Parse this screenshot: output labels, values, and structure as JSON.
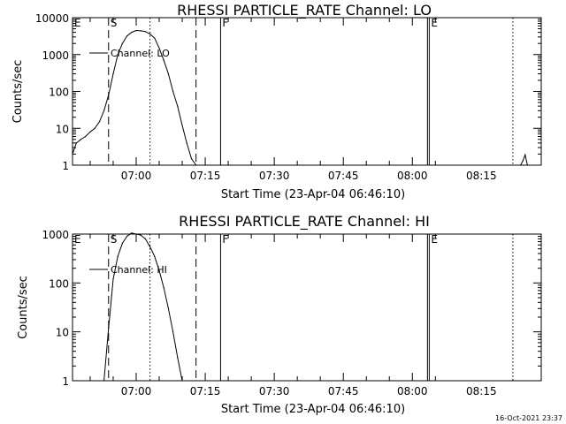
{
  "chart_data": [
    {
      "type": "line",
      "title": "RHESSI PARTICLE_RATE Channel: LO",
      "xlabel": "Start Time (23-Apr-04 06:46:10)",
      "ylabel": "Counts/sec",
      "yscale": "log",
      "ylim": [
        1,
        10000
      ],
      "xlim": [
        "06:46:10",
        "08:28:00"
      ],
      "x_ticks": [
        "07:00",
        "07:15",
        "07:30",
        "07:45",
        "08:00",
        "08:15"
      ],
      "y_ticks": [
        "1",
        "10",
        "100",
        "1000",
        "10000"
      ],
      "legend": {
        "placement": "top-left",
        "label": "Channel: LO"
      },
      "markers": [
        {
          "label": "E",
          "time": "06:46:10",
          "style": "none"
        },
        {
          "label": "S",
          "time": "06:54:00",
          "style": "dashed"
        },
        {
          "label": "",
          "time": "07:03:00",
          "style": "dotted"
        },
        {
          "label": "",
          "time": "07:13:00",
          "style": "dashed"
        },
        {
          "label": "F",
          "time": "07:18:20",
          "style": "solid"
        },
        {
          "label": "E",
          "time": "08:03:40",
          "style": "solid"
        },
        {
          "label": "",
          "time": "08:21:50",
          "style": "dotted"
        }
      ],
      "series": [
        {
          "name": "Channel: LO",
          "x": [
            "06:46:10",
            "06:47:00",
            "06:48:00",
            "06:49:00",
            "06:50:00",
            "06:51:00",
            "06:52:00",
            "06:53:00",
            "06:54:00",
            "06:55:00",
            "06:56:00",
            "06:57:00",
            "06:58:00",
            "06:59:00",
            "07:00:00",
            "07:01:00",
            "07:02:00",
            "07:03:00",
            "07:04:00",
            "07:05:00",
            "07:06:00",
            "07:07:00",
            "07:08:00",
            "07:09:00",
            "07:10:00",
            "07:11:00",
            "07:12:00",
            "07:13:00"
          ],
          "values": [
            2,
            4,
            5,
            6,
            8,
            10,
            15,
            30,
            80,
            300,
            1000,
            2000,
            3200,
            4000,
            4500,
            4400,
            4200,
            3600,
            2800,
            1500,
            700,
            300,
            100,
            40,
            12,
            4,
            1.5,
            1
          ]
        },
        {
          "name": "Channel: LO",
          "x": [
            "08:23:30",
            "08:24:00",
            "08:24:30",
            "08:25:00"
          ],
          "values": [
            1,
            1.3,
            1.9,
            1
          ]
        }
      ]
    },
    {
      "type": "line",
      "title": "RHESSI PARTICLE_RATE Channel: HI",
      "xlabel": "Start Time (23-Apr-04 06:46:10)",
      "ylabel": "Counts/sec",
      "yscale": "log",
      "ylim": [
        1,
        1000
      ],
      "xlim": [
        "06:46:10",
        "08:28:00"
      ],
      "x_ticks": [
        "07:00",
        "07:15",
        "07:30",
        "07:45",
        "08:00",
        "08:15"
      ],
      "y_ticks": [
        "1",
        "10",
        "100",
        "1000"
      ],
      "legend": {
        "placement": "top-left",
        "label": "Channel: HI"
      },
      "markers": [
        {
          "label": "E",
          "time": "06:46:10",
          "style": "none"
        },
        {
          "label": "S",
          "time": "06:54:00",
          "style": "dashed"
        },
        {
          "label": "",
          "time": "07:03:00",
          "style": "dotted"
        },
        {
          "label": "",
          "time": "07:13:00",
          "style": "dashed"
        },
        {
          "label": "F",
          "time": "07:18:20",
          "style": "solid"
        },
        {
          "label": "E",
          "time": "08:03:40",
          "style": "solid"
        },
        {
          "label": "",
          "time": "08:21:50",
          "style": "dotted"
        }
      ],
      "series": [
        {
          "name": "Channel: HI",
          "x": [
            "06:53:00",
            "06:54:00",
            "06:55:00",
            "06:56:00",
            "06:57:00",
            "06:58:00",
            "06:59:00",
            "07:00:00",
            "07:01:00",
            "07:02:00",
            "07:03:00",
            "07:04:00",
            "07:05:00",
            "07:06:00",
            "07:07:00",
            "07:08:00",
            "07:09:00",
            "07:10:00"
          ],
          "values": [
            1,
            12,
            120,
            350,
            650,
            900,
            1050,
            1000,
            950,
            800,
            550,
            350,
            180,
            80,
            30,
            10,
            3,
            1
          ]
        }
      ]
    }
  ],
  "timestamp": "16-Oct-2021 23:37"
}
